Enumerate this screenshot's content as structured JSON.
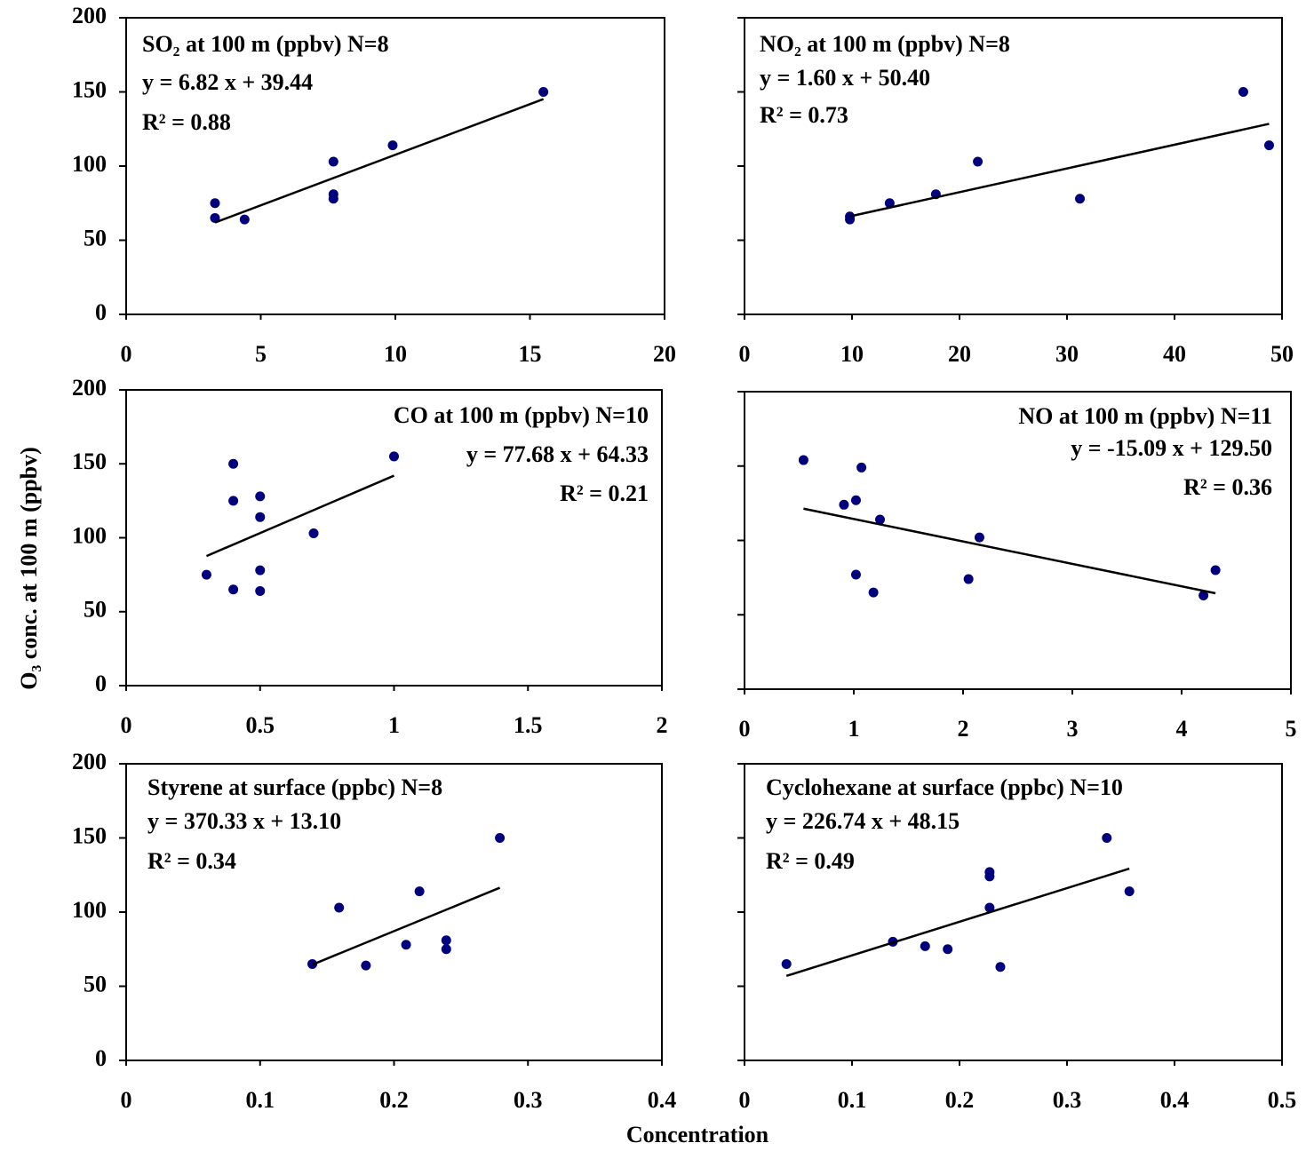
{
  "y_label": "O₃ conc. at 100 m (ppbv)",
  "x_label": "Concentration",
  "chart_data": [
    {
      "type": "scatter",
      "title": "SO₂ at 100 m (ppbv) N=8",
      "equation": "y = 6.82 x + 39.44",
      "r2_label": "R² = 0.88",
      "fit": {
        "slope": 6.82,
        "intercept": 39.44,
        "r2": 0.88
      },
      "x": [
        3.3,
        3.3,
        4.4,
        7.7,
        7.7,
        7.7,
        9.9,
        15.5
      ],
      "values": [
        75,
        65,
        64,
        103,
        81,
        78,
        114,
        150
      ],
      "color": "#00007f",
      "xlim": [
        0,
        20
      ],
      "xticks": [
        0,
        5,
        10,
        15,
        20
      ],
      "ylim": [
        0,
        200
      ],
      "yticks": [
        0,
        50,
        100,
        150,
        200
      ],
      "ytick_labels": true
    },
    {
      "type": "scatter",
      "title": "NO₂ at 100 m (ppbv) N=8",
      "equation": "y = 1.60 x + 50.40",
      "r2_label": "R² = 0.73",
      "fit": {
        "slope": 1.6,
        "intercept": 50.4,
        "r2": 0.73
      },
      "x": [
        9.8,
        9.8,
        13.5,
        17.8,
        21.7,
        31.2,
        46.4,
        48.8
      ],
      "values": [
        66,
        64,
        75,
        81,
        103,
        78,
        150,
        114
      ],
      "color": "#00007f",
      "xlim": [
        0,
        50
      ],
      "xticks": [
        0,
        10,
        20,
        30,
        40,
        50
      ],
      "ylim": [
        0,
        200
      ],
      "yticks": [
        0,
        50,
        100,
        150,
        200
      ],
      "ytick_labels": false
    },
    {
      "type": "scatter",
      "title": "CO at 100 m (ppbv) N=10",
      "equation": "y = 77.68 x + 64.33",
      "r2_label": "R² = 0.21",
      "fit": {
        "slope": 77.68,
        "intercept": 64.33,
        "r2": 0.21
      },
      "x": [
        0.3,
        0.4,
        0.4,
        0.4,
        0.5,
        0.5,
        0.5,
        0.5,
        0.7,
        1.0
      ],
      "values": [
        75,
        150,
        125,
        65,
        128,
        114,
        78,
        64,
        103,
        155
      ],
      "color": "#00007f",
      "xlim": [
        0,
        2
      ],
      "xticks": [
        0,
        0.5,
        1,
        1.5,
        2
      ],
      "ylim": [
        0,
        200
      ],
      "yticks": [
        0,
        50,
        100,
        150,
        200
      ],
      "ytick_labels": true
    },
    {
      "type": "scatter",
      "title": "NO at 100 m (ppbv) N=11",
      "equation": "y = -15.09 x + 129.50",
      "r2_label": "R² = 0.36",
      "fit": {
        "slope": -15.09,
        "intercept": 129.5,
        "r2": 0.36
      },
      "x": [
        0.54,
        1.07,
        0.91,
        1.02,
        1.24,
        2.15,
        1.02,
        1.18,
        2.05,
        4.2,
        4.31
      ],
      "values": [
        154,
        149,
        124,
        127,
        114,
        102,
        77,
        65,
        74,
        63,
        80
      ],
      "color": "#00007f",
      "xlim": [
        0,
        5
      ],
      "xticks": [
        0,
        1,
        2,
        3,
        4,
        5
      ],
      "ylim": [
        0,
        200
      ],
      "yticks": [
        0,
        50,
        100,
        150,
        200
      ],
      "ytick_labels": false
    },
    {
      "type": "scatter",
      "title": "Styrene at surface (ppbc) N=8",
      "equation": "y = 370.33 x + 13.10",
      "r2_label": "R² = 0.34",
      "fit": {
        "slope": 370.33,
        "intercept": 13.1,
        "r2": 0.34
      },
      "x": [
        0.139,
        0.159,
        0.179,
        0.209,
        0.219,
        0.239,
        0.239,
        0.279
      ],
      "values": [
        65,
        103,
        64,
        78,
        114,
        81,
        75,
        150
      ],
      "color": "#00007f",
      "xlim": [
        0,
        0.4
      ],
      "xticks": [
        0,
        0.1,
        0.2,
        0.3,
        0.4
      ],
      "ylim": [
        0,
        200
      ],
      "yticks": [
        0,
        50,
        100,
        150,
        200
      ],
      "ytick_labels": true
    },
    {
      "type": "scatter",
      "title": "Cyclohexane at surface (ppbc) N=10",
      "equation": "y = 226.74 x + 48.15",
      "r2_label": "R² = 0.49",
      "fit": {
        "slope": 226.74,
        "intercept": 48.15,
        "r2": 0.49
      },
      "x": [
        0.039,
        0.138,
        0.168,
        0.189,
        0.228,
        0.228,
        0.228,
        0.238,
        0.337,
        0.358
      ],
      "values": [
        65,
        80,
        77,
        75,
        127,
        124,
        103,
        63,
        150,
        114
      ],
      "color": "#00007f",
      "xlim": [
        0,
        0.5
      ],
      "xticks": [
        0,
        0.1,
        0.2,
        0.3,
        0.4,
        0.5
      ],
      "ylim": [
        0,
        200
      ],
      "yticks": [
        0,
        50,
        100,
        150,
        200
      ],
      "ytick_labels": false
    }
  ]
}
